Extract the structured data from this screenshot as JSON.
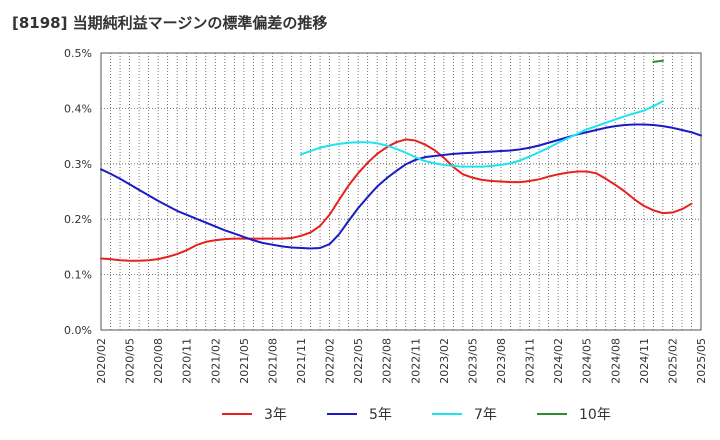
{
  "title": "[8198]  当期純利益マージンの標準偏差の推移",
  "chart_data": {
    "type": "line",
    "title": "[8198]  当期純利益マージンの標準偏差の推移",
    "xlabel": "",
    "ylabel": "",
    "ylim": [
      0,
      0.5
    ],
    "yticks": [
      "0.0%",
      "0.1%",
      "0.2%",
      "0.3%",
      "0.4%",
      "0.5%"
    ],
    "xticks": [
      "2020/02",
      "2020/05",
      "2020/08",
      "2020/11",
      "2021/02",
      "2021/05",
      "2021/08",
      "2021/11",
      "2022/02",
      "2022/05",
      "2022/08",
      "2022/11",
      "2023/02",
      "2023/05",
      "2023/08",
      "2023/11",
      "2024/02",
      "2024/05",
      "2024/08",
      "2024/11",
      "2025/02",
      "2025/05"
    ],
    "grid": true,
    "legend_position": "bottom",
    "x_start": "2020/02",
    "series": [
      {
        "name": "3年",
        "color": "#e8211c",
        "start": "2020/02",
        "values": [
          0.129,
          0.128,
          0.126,
          0.125,
          0.125,
          0.126,
          0.128,
          0.132,
          0.137,
          0.144,
          0.153,
          0.159,
          0.162,
          0.164,
          0.165,
          0.165,
          0.165,
          0.165,
          0.165,
          0.165,
          0.166,
          0.17,
          0.176,
          0.188,
          0.208,
          0.235,
          0.261,
          0.283,
          0.302,
          0.318,
          0.33,
          0.339,
          0.344,
          0.342,
          0.335,
          0.325,
          0.311,
          0.294,
          0.281,
          0.275,
          0.271,
          0.269,
          0.268,
          0.267,
          0.267,
          0.269,
          0.272,
          0.277,
          0.281,
          0.284,
          0.286,
          0.286,
          0.283,
          0.273,
          0.262,
          0.25,
          0.236,
          0.224,
          0.216,
          0.211,
          0.212,
          0.218,
          0.228
        ]
      },
      {
        "name": "5年",
        "color": "#1a1ac8",
        "start": "2020/02",
        "values": [
          0.29,
          0.282,
          0.273,
          0.263,
          0.253,
          0.243,
          0.233,
          0.224,
          0.215,
          0.208,
          0.201,
          0.194,
          0.187,
          0.18,
          0.174,
          0.168,
          0.162,
          0.157,
          0.154,
          0.151,
          0.149,
          0.148,
          0.147,
          0.148,
          0.155,
          0.173,
          0.197,
          0.22,
          0.24,
          0.259,
          0.274,
          0.287,
          0.299,
          0.307,
          0.312,
          0.314,
          0.316,
          0.318,
          0.319,
          0.32,
          0.321,
          0.322,
          0.323,
          0.324,
          0.326,
          0.329,
          0.333,
          0.338,
          0.343,
          0.348,
          0.353,
          0.357,
          0.361,
          0.365,
          0.368,
          0.37,
          0.371,
          0.371,
          0.37,
          0.368,
          0.365,
          0.361,
          0.357,
          0.351
        ]
      },
      {
        "name": "7年",
        "color": "#1ee4f0",
        "start": "2021/11",
        "values": [
          0.317,
          0.323,
          0.329,
          0.333,
          0.336,
          0.338,
          0.339,
          0.339,
          0.337,
          0.333,
          0.327,
          0.32,
          0.312,
          0.305,
          0.301,
          0.298,
          0.296,
          0.295,
          0.295,
          0.295,
          0.296,
          0.298,
          0.301,
          0.306,
          0.313,
          0.321,
          0.329,
          0.338,
          0.346,
          0.354,
          0.362,
          0.368,
          0.374,
          0.38,
          0.386,
          0.391,
          0.396,
          0.404,
          0.413
        ]
      },
      {
        "name": "10年",
        "color": "#2e8b2e",
        "start": "2024/12",
        "values": [
          0.484,
          0.486
        ]
      }
    ]
  },
  "colors": {
    "grid": "#555555",
    "axis": "#555555",
    "tick_text": "#333333"
  }
}
